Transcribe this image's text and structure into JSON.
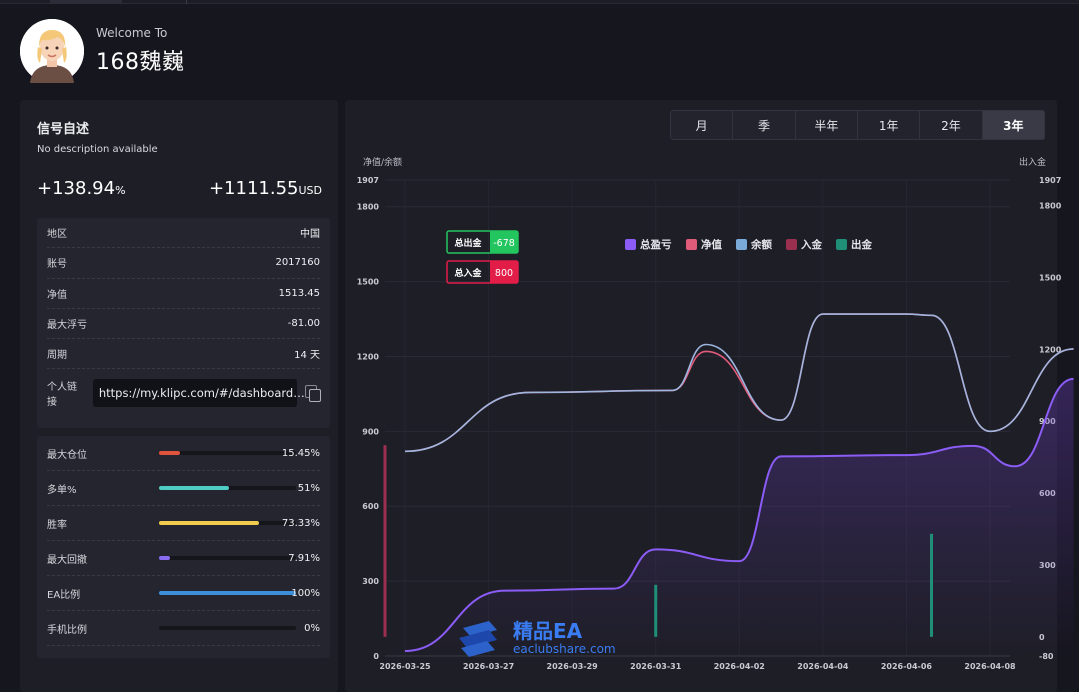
{
  "header": {
    "welcome": "Welcome To",
    "username": "168魏巍"
  },
  "signal": {
    "title": "信号自述",
    "description": "No description available",
    "gain_value": "+138.94",
    "gain_unit": "%",
    "profit_value": "+1111.55",
    "profit_unit": "USD"
  },
  "info": {
    "rows": [
      {
        "label": "地区",
        "value": "中国"
      },
      {
        "label": "账号",
        "value": "2017160"
      },
      {
        "label": "净值",
        "value": "1513.45"
      },
      {
        "label": "最大浮亏",
        "value": "-81.00"
      },
      {
        "label": "周期",
        "value": "14 天"
      }
    ],
    "link_label": "个人链接",
    "link_value": "https://my.klipc.com/#/dashboard…"
  },
  "stats": [
    {
      "label": "最大仓位",
      "value": "15.45%",
      "fraction": 0.1545,
      "color": "#e0533d"
    },
    {
      "label": "多单%",
      "value": "51%",
      "fraction": 0.51,
      "color": "#4ecdc4"
    },
    {
      "label": "胜率",
      "value": "73.33%",
      "fraction": 0.7333,
      "color": "#f2cc4d"
    },
    {
      "label": "最大回撤",
      "value": "7.91%",
      "fraction": 0.0791,
      "color": "#8a6cf0"
    },
    {
      "label": "EA比例",
      "value": "100%",
      "fraction": 1.0,
      "color": "#3d8fd9"
    },
    {
      "label": "手机比例",
      "value": "0%",
      "fraction": 0.0,
      "color": "#3d8fd9"
    }
  ],
  "periods": {
    "items": [
      "月",
      "季",
      "半年",
      "1年",
      "2年",
      "3年"
    ],
    "active": "3年"
  },
  "watermark": {
    "title": "精品EA",
    "url": "eaclubshare.com"
  },
  "chart_data": {
    "type": "line",
    "left_axis_label": "净值/余额",
    "right_axis_label": "出入金",
    "left_ticks": [
      0,
      300,
      600,
      900,
      1200,
      1500,
      1800,
      1907
    ],
    "right_ticks": [
      -80,
      0,
      300,
      600,
      900,
      1200,
      1500,
      1800,
      1907
    ],
    "left_range": [
      0,
      1907
    ],
    "right_range": [
      -80,
      1907
    ],
    "x": [
      "2026-03-25",
      "2026-03-27",
      "2026-03-29",
      "2026-03-31",
      "2026-04-02",
      "2026-04-04",
      "2026-04-06",
      "2026-04-08"
    ],
    "legend": [
      {
        "name": "总盈亏",
        "color": "#8b5cf6"
      },
      {
        "name": "净值",
        "color": "#e05a7a"
      },
      {
        "name": "余额",
        "color": "#7aaad8"
      },
      {
        "name": "入金",
        "color": "#9b2f50"
      },
      {
        "name": "出金",
        "color": "#1f8f78"
      }
    ],
    "badges": [
      {
        "label": "总出金",
        "value": "-678",
        "color": "#22c55e"
      },
      {
        "label": "总入金",
        "value": "800",
        "color": "#e11d48"
      }
    ],
    "series": {
      "balance": [
        [
          0,
          820
        ],
        [
          1.5,
          1056
        ],
        [
          3.2,
          1064
        ],
        [
          3.6,
          1248
        ],
        [
          4.5,
          945
        ],
        [
          5.0,
          1370
        ],
        [
          6.0,
          1370
        ],
        [
          6.3,
          1365
        ],
        [
          7.0,
          900
        ],
        [
          8.0,
          1230
        ]
      ],
      "equity": [
        [
          0,
          820
        ],
        [
          1.5,
          1056
        ],
        [
          3.2,
          1064
        ],
        [
          3.6,
          1220
        ],
        [
          4.5,
          945
        ],
        [
          5.0,
          1370
        ],
        [
          6.0,
          1370
        ],
        [
          6.3,
          1365
        ],
        [
          7.0,
          900
        ],
        [
          8.0,
          1230
        ]
      ],
      "total_pnl": [
        [
          0,
          20
        ],
        [
          1.2,
          262
        ],
        [
          2.5,
          270
        ],
        [
          3.0,
          427
        ],
        [
          4.0,
          380
        ],
        [
          4.5,
          800
        ],
        [
          6.0,
          805
        ],
        [
          6.8,
          842
        ],
        [
          7.3,
          760
        ],
        [
          8.0,
          1110
        ]
      ],
      "deposit": [
        [
          0.0,
          800
        ]
      ],
      "withdrawal": [
        [
          3.0,
          217
        ],
        [
          6.3,
          430
        ]
      ]
    }
  }
}
